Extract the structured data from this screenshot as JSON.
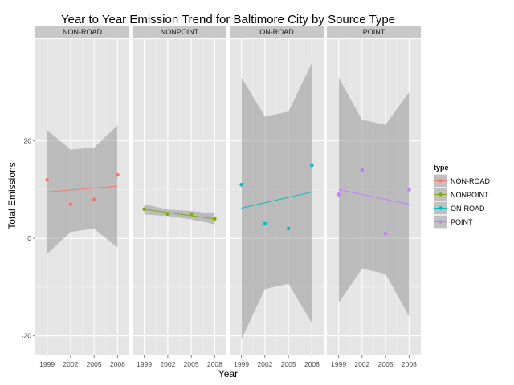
{
  "chart_data": {
    "type": "scatter",
    "title": "Year to Year Emission Trend for Baltimore City by Source Type",
    "xlabel": "Year",
    "ylabel": "Total Emissions",
    "x_ticks": [
      1999,
      2002,
      2005,
      2008
    ],
    "xlim": [
      1997.5,
      2009.5
    ],
    "y_ticks": [
      -20,
      0,
      20
    ],
    "ylim": [
      -24,
      41
    ],
    "grid": true,
    "legend": {
      "title": "type",
      "placement": "right",
      "entries": [
        "NON-ROAD",
        "NONPOINT",
        "ON-ROAD",
        "POINT"
      ]
    },
    "facets": [
      {
        "name": "NON-ROAD",
        "color": "#F8766D",
        "points": [
          {
            "x": 1999,
            "y": 12
          },
          {
            "x": 2002,
            "y": 7
          },
          {
            "x": 2005,
            "y": 8
          },
          {
            "x": 2008,
            "y": 13
          }
        ],
        "fit": [
          9.5,
          10.7
        ],
        "band": {
          "lower": [
            -3.2,
            1.3,
            2.0,
            -1.9
          ],
          "upper": [
            22.2,
            18.2,
            18.6,
            23.2
          ]
        }
      },
      {
        "name": "NONPOINT",
        "color": "#7CAE00",
        "points": [
          {
            "x": 1999,
            "y": 6
          },
          {
            "x": 2002,
            "y": 5
          },
          {
            "x": 2005,
            "y": 5
          },
          {
            "x": 2008,
            "y": 4
          }
        ],
        "fit": [
          5.95,
          4.0
        ],
        "band": {
          "lower": [
            4.9,
            4.6,
            3.9,
            2.9
          ],
          "upper": [
            7.0,
            5.9,
            5.6,
            5.1
          ]
        }
      },
      {
        "name": "ON-ROAD",
        "color": "#00BFC4",
        "points": [
          {
            "x": 1999,
            "y": 11
          },
          {
            "x": 2002,
            "y": 3
          },
          {
            "x": 2005,
            "y": 2
          },
          {
            "x": 2008,
            "y": 15
          }
        ],
        "fit": [
          6.2,
          9.5
        ],
        "band": {
          "lower": [
            -20.7,
            -10.4,
            -9.3,
            -17.4
          ],
          "upper": [
            33.0,
            25.0,
            26.0,
            36.0
          ]
        }
      },
      {
        "name": "POINT",
        "color": "#C77CFF",
        "points": [
          {
            "x": 1999,
            "y": 9
          },
          {
            "x": 2002,
            "y": 14
          },
          {
            "x": 2005,
            "y": 1
          },
          {
            "x": 2008,
            "y": 10
          }
        ],
        "fit": [
          10.0,
          7.0
        ],
        "band": {
          "lower": [
            -13.2,
            -6.2,
            -7.3,
            -16.0
          ],
          "upper": [
            33.0,
            24.3,
            23.3,
            30.0
          ]
        }
      }
    ]
  }
}
